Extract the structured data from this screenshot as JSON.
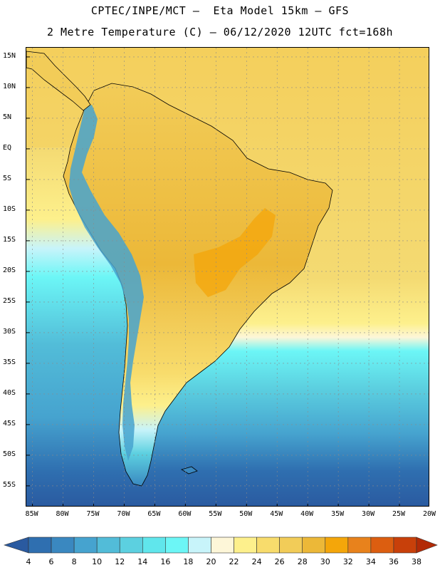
{
  "title": {
    "line1": "CPTEC/INPE/MCT –  Eta Model 15km – GFS",
    "line2": "2 Metre Temperature (C) – 06/12/2020 12UTC fct=168h"
  },
  "map": {
    "lat_labels": [
      "15N",
      "10N",
      "5N",
      "EQ",
      "5S",
      "10S",
      "15S",
      "20S",
      "25S",
      "30S",
      "35S",
      "40S",
      "45S",
      "50S",
      "55S"
    ],
    "lon_labels": [
      "85W",
      "80W",
      "75W",
      "70W",
      "65W",
      "60W",
      "55W",
      "50W",
      "45W",
      "40W",
      "35W",
      "30W",
      "25W",
      "20W"
    ],
    "lat_values": [
      15,
      10,
      5,
      0,
      -5,
      -10,
      -15,
      -20,
      -25,
      -30,
      -35,
      -40,
      -45,
      -50,
      -55
    ],
    "lon_values": [
      -85,
      -80,
      -75,
      -70,
      -65,
      -60,
      -55,
      -50,
      -45,
      -40,
      -35,
      -30,
      -25,
      -20
    ],
    "lat_range": [
      -58.5,
      16.5
    ],
    "lon_range": [
      -86,
      -20
    ],
    "gridlines": "dotted"
  },
  "colorbar": {
    "labels": [
      "4",
      "6",
      "8",
      "10",
      "12",
      "14",
      "16",
      "18",
      "20",
      "22",
      "24",
      "26",
      "28",
      "30",
      "32",
      "34",
      "36",
      "38"
    ],
    "colors": [
      "#2a5aa0",
      "#2f6fb0",
      "#3a88c0",
      "#46a3cf",
      "#52bcd8",
      "#5cd0e0",
      "#60e6ec",
      "#6cf6f6",
      "#c8f4fa",
      "#fdf6d8",
      "#fdf08c",
      "#f8dc6c",
      "#f2cc58",
      "#ecb838",
      "#f4a60a",
      "#e8821c",
      "#dc5e10",
      "#c8400a",
      "#b22a06"
    ],
    "units": "C"
  }
}
